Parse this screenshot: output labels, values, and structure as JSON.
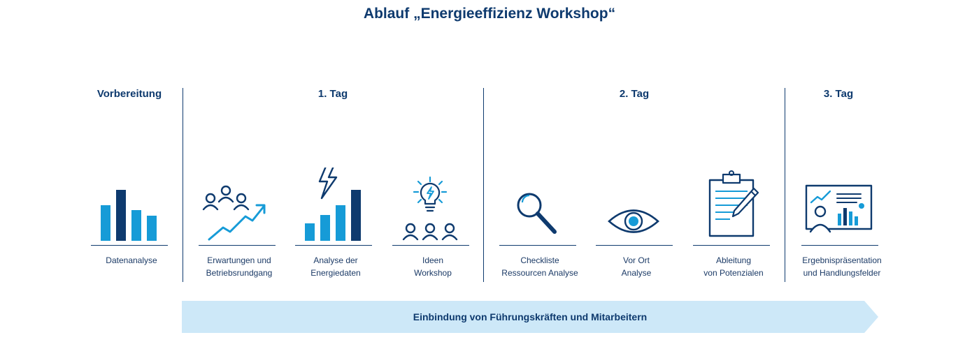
{
  "title": "Ablauf „Energieeffizienz Workshop“",
  "phases": [
    "Vorbereitung",
    "1. Tag",
    "2. Tag",
    "3. Tag"
  ],
  "steps": [
    {
      "icon": "bar-chart-icon",
      "lines": [
        "Datenanalyse",
        ""
      ]
    },
    {
      "icon": "team-growth-icon",
      "lines": [
        "Erwartungen und",
        "Betriebsrundgang"
      ]
    },
    {
      "icon": "energy-chart-icon",
      "lines": [
        "Analyse der",
        "Energiedaten"
      ]
    },
    {
      "icon": "idea-workshop-icon",
      "lines": [
        "Ideen",
        "Workshop"
      ]
    },
    {
      "icon": "magnifier-icon",
      "lines": [
        "Checkliste",
        "Ressourcen Analyse"
      ]
    },
    {
      "icon": "eye-icon",
      "lines": [
        "Vor Ort",
        "Analyse"
      ]
    },
    {
      "icon": "clipboard-icon",
      "lines": [
        "Ableitung",
        "von Potenzialen"
      ]
    },
    {
      "icon": "presentation-icon",
      "lines": [
        "Ergebnispräsentation",
        "und Handlungsfelder"
      ]
    }
  ],
  "banner": "Einbindung von Führungskräften und Mitarbeitern",
  "colors": {
    "dark": "#0e3a6e",
    "light": "#169bd7",
    "banner": "#cde8f8"
  }
}
